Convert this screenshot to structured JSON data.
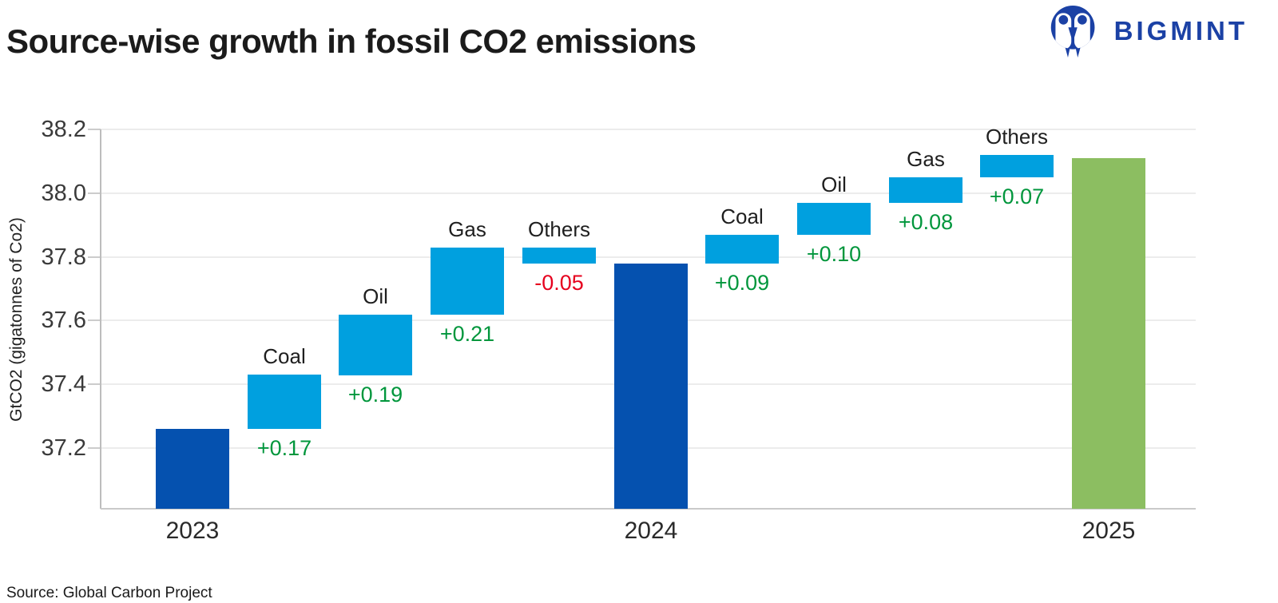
{
  "header": {
    "title": "Source-wise growth in fossil CO2 emissions",
    "logo_text": "BIGMINT"
  },
  "footer": {
    "source": "Source: Global Carbon Project"
  },
  "colors": {
    "total_bar": "#0551AF",
    "delta_bar": "#00A0DF",
    "final_bar": "#8CBE61",
    "delta_positive_text": "#00963C",
    "delta_negative_text": "#E6001E",
    "logo_blue": "#1B41A5"
  },
  "chart_data": {
    "type": "bar",
    "subtype": "waterfall",
    "title": "Source-wise growth in fossil CO2 emissions",
    "ylabel": "GtCO2 (gigatonnes of Co2)",
    "xlabel": "",
    "ylim": [
      37.01,
      38.2
    ],
    "yticks": [
      38.2,
      38.0,
      37.8,
      37.6,
      37.4,
      37.2
    ],
    "ytick_labels": [
      "38.2",
      "38.0",
      "37.8",
      "37.6",
      "37.4",
      "37.2"
    ],
    "grid": true,
    "legend": "none",
    "bars": [
      {
        "kind": "total",
        "label": "2023",
        "value": 37.26
      },
      {
        "kind": "delta",
        "name": "Coal",
        "from": 37.26,
        "to": 37.43,
        "delta": 0.17,
        "delta_label": "+0.17"
      },
      {
        "kind": "delta",
        "name": "Oil",
        "from": 37.43,
        "to": 37.62,
        "delta": 0.19,
        "delta_label": "+0.19"
      },
      {
        "kind": "delta",
        "name": "Gas",
        "from": 37.62,
        "to": 37.83,
        "delta": 0.21,
        "delta_label": "+0.21"
      },
      {
        "kind": "delta",
        "name": "Others",
        "from": 37.83,
        "to": 37.78,
        "delta": -0.05,
        "delta_label": "-0.05"
      },
      {
        "kind": "total",
        "label": "2024",
        "value": 37.78
      },
      {
        "kind": "delta",
        "name": "Coal",
        "from": 37.78,
        "to": 37.87,
        "delta": 0.09,
        "delta_label": "+0.09"
      },
      {
        "kind": "delta",
        "name": "Oil",
        "from": 37.87,
        "to": 37.97,
        "delta": 0.1,
        "delta_label": "+0.10"
      },
      {
        "kind": "delta",
        "name": "Gas",
        "from": 37.97,
        "to": 38.05,
        "delta": 0.08,
        "delta_label": "+0.08"
      },
      {
        "kind": "delta",
        "name": "Others",
        "from": 38.05,
        "to": 38.12,
        "delta": 0.07,
        "delta_label": "+0.07"
      },
      {
        "kind": "total",
        "label": "2025",
        "value": 38.11,
        "final": true
      }
    ]
  }
}
